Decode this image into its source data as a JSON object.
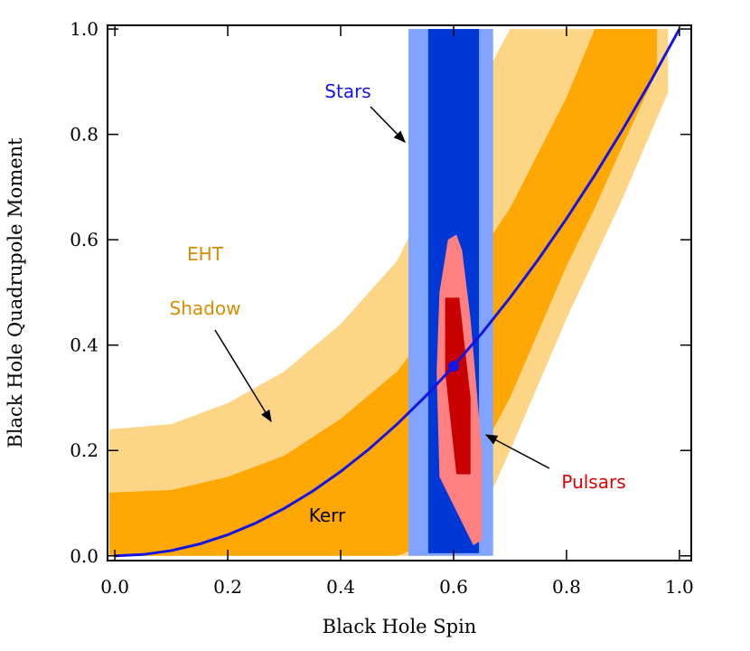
{
  "chart_data": {
    "type": "region",
    "xlabel": "Black Hole Spin",
    "ylabel": "Black Hole Quadrupole Moment",
    "xlim": [
      -0.013,
      1.021
    ],
    "ylim": [
      -0.009,
      1.007
    ],
    "xticks": [
      {
        "value": 0,
        "label": "0.0"
      },
      0.2,
      0.4,
      0.6,
      0.8,
      {
        "value": 1,
        "label": "1.0"
      }
    ],
    "yticks": [
      {
        "value": 0,
        "label": "0.0"
      },
      0.2,
      0.4,
      0.6,
      0.8,
      {
        "value": 1,
        "label": "1.0"
      }
    ],
    "bands": [
      {
        "color": "#fdd587",
        "x": [
          -0.01,
          0.1,
          0.2,
          0.3,
          0.4,
          0.5,
          0.6,
          0.65,
          0.7,
          0.8,
          0.9,
          0.98
        ],
        "upper": [
          0.24,
          0.25,
          0.29,
          0.35,
          0.44,
          0.56,
          0.78,
          0.9,
          1.0,
          1.0,
          1.0,
          1.0
        ],
        "lower": [
          0,
          0,
          0,
          0,
          0,
          0,
          0,
          0.08,
          0.2,
          0.45,
          0.68,
          0.88
        ]
      },
      {
        "color": "#ffa805",
        "x": [
          -0.01,
          0.1,
          0.2,
          0.3,
          0.4,
          0.5,
          0.55,
          0.6,
          0.7,
          0.8,
          0.85,
          0.9,
          0.96
        ],
        "upper": [
          0.12,
          0.125,
          0.15,
          0.19,
          0.26,
          0.35,
          0.42,
          0.5,
          0.66,
          0.87,
          1.0,
          1.0,
          1.0
        ],
        "lower": [
          0,
          0,
          0,
          0,
          0,
          0,
          0.02,
          0.1,
          0.3,
          0.55,
          0.66,
          0.78,
          0.92
        ]
      }
    ],
    "rects": [
      {
        "color": "#80a4ff",
        "x": [
          0.52,
          0.67
        ],
        "y": [
          0,
          1.0
        ]
      },
      {
        "color": "#0038d8",
        "x": [
          0.555,
          0.645
        ],
        "y": [
          0.005,
          1.0
        ]
      }
    ],
    "polygons": [
      {
        "color": "#ff8080",
        "x": [
          0.59,
          0.605,
          0.615,
          0.63,
          0.65,
          0.65,
          0.635,
          0.575,
          0.57,
          0.575
        ],
        "y": [
          0.6,
          0.61,
          0.58,
          0.45,
          0.2,
          0.03,
          0.02,
          0.15,
          0.35,
          0.5
        ]
      },
      {
        "color": "#c80000",
        "x": [
          0.585,
          0.61,
          0.63,
          0.63,
          0.605,
          0.585
        ],
        "y": [
          0.49,
          0.49,
          0.3,
          0.155,
          0.155,
          0.35
        ]
      }
    ],
    "line": {
      "color": "#1414e6",
      "x": [
        0,
        0.05,
        0.1,
        0.15,
        0.2,
        0.25,
        0.3,
        0.35,
        0.4,
        0.45,
        0.5,
        0.55,
        0.6,
        0.65,
        0.7,
        0.75,
        0.8,
        0.85,
        0.9,
        0.95,
        1.0
      ],
      "y": [
        0,
        0.0025,
        0.01,
        0.0225,
        0.04,
        0.0625,
        0.09,
        0.1225,
        0.16,
        0.2025,
        0.25,
        0.3025,
        0.36,
        0.4225,
        0.49,
        0.5625,
        0.64,
        0.7225,
        0.81,
        0.9025,
        1.0
      ]
    },
    "point": {
      "x": 0.6,
      "y": 0.36,
      "color": "#1414e6"
    },
    "annotations": [
      {
        "text": "Stars",
        "color": "#1414e6"
      },
      {
        "text": "EHT",
        "color": "#d98c00"
      },
      {
        "text": "Shadow",
        "color": "#d98c00"
      },
      {
        "text": "Pulsars",
        "color": "#e00000"
      },
      {
        "text": "Kerr",
        "color": "#000000"
      }
    ]
  }
}
